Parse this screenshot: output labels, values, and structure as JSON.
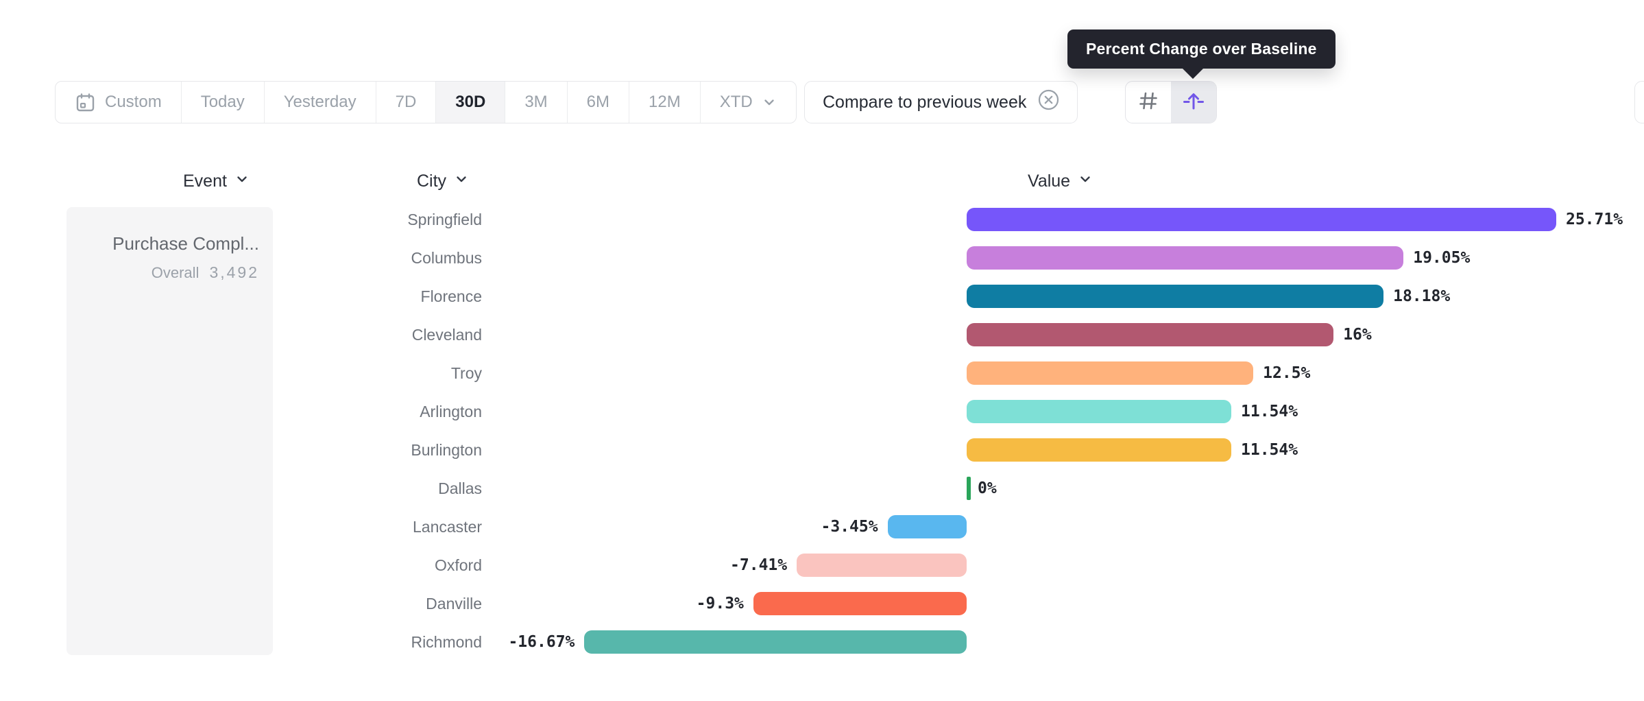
{
  "tooltip": {
    "text": "Percent Change over Baseline"
  },
  "toolbar": {
    "date_ranges": [
      {
        "label": "Custom",
        "icon": "calendar-icon",
        "selected": false
      },
      {
        "label": "Today",
        "selected": false
      },
      {
        "label": "Yesterday",
        "selected": false
      },
      {
        "label": "7D",
        "selected": false
      },
      {
        "label": "30D",
        "selected": true
      },
      {
        "label": "3M",
        "selected": false
      },
      {
        "label": "6M",
        "selected": false
      },
      {
        "label": "12M",
        "selected": false
      },
      {
        "label": "XTD",
        "icon": "chevron-down-icon",
        "selected": false
      }
    ],
    "compare": {
      "label": "Compare to previous week",
      "close_icon": "circled-x-icon"
    },
    "view_toggle": [
      {
        "name": "grid-view",
        "icon": "hash-icon",
        "selected": false
      },
      {
        "name": "percent-change-over-baseline",
        "icon": "baseline-arrow-icon",
        "selected": true
      }
    ]
  },
  "columns": [
    {
      "label": "Event"
    },
    {
      "label": "City"
    },
    {
      "label": "Value"
    }
  ],
  "event_panel": {
    "event_name": "Purchase Compl...",
    "overall_label": "Overall",
    "overall_value": "3,492"
  },
  "colors": {
    "accent_purple": "#7156e8",
    "selected_segment_bg": "#e9eaee",
    "selected_range_bg": "#f4f4f6",
    "tooltip_bg": "#23242d",
    "muted_text": "#9aa1a9",
    "dark_text": "#23262d"
  },
  "chart_data": {
    "type": "bar",
    "orientation": "horizontal",
    "title": "Percent Change over Baseline",
    "unit": "%",
    "xlim": [
      -16.67,
      25.71
    ],
    "baseline": 0,
    "grid": false,
    "categories": [
      "Springfield",
      "Columbus",
      "Florence",
      "Cleveland",
      "Troy",
      "Arlington",
      "Burlington",
      "Dallas",
      "Lancaster",
      "Oxford",
      "Danville",
      "Richmond"
    ],
    "values": [
      25.71,
      19.05,
      18.18,
      16,
      12.5,
      11.54,
      11.54,
      0,
      -3.45,
      -7.41,
      -9.3,
      -16.67
    ],
    "labels": [
      "25.71%",
      "19.05%",
      "18.18%",
      "16%",
      "12.5%",
      "11.54%",
      "11.54%",
      "0%",
      "-3.45%",
      "-7.41%",
      "-9.3%",
      "-16.67%"
    ],
    "colors": [
      "#7656fa",
      "#c77fdc",
      "#0f7da3",
      "#b25870",
      "#ffb27c",
      "#7ee0d6",
      "#f6bb43",
      "#2aa55a",
      "#59b7ef",
      "#fac4bf",
      "#fa6a4d",
      "#57b7ab"
    ]
  }
}
